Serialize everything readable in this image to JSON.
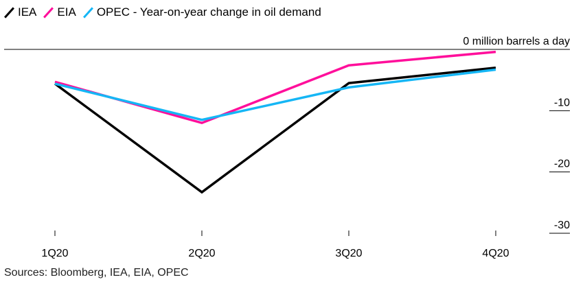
{
  "legend": {
    "items": [
      {
        "label": "IEA",
        "color": "#000000"
      },
      {
        "label": "EIA",
        "color": "#ff0f9b"
      },
      {
        "label": "OPEC",
        "color": "#15b6f5"
      }
    ],
    "title": "- Year-on-year change in oil demand"
  },
  "source": "Sources: Bloomberg, IEA, EIA, OPEC",
  "chart_data": {
    "type": "line",
    "categories": [
      "1Q20",
      "2Q20",
      "3Q20",
      "4Q20"
    ],
    "series": [
      {
        "name": "IEA",
        "values": [
          -5.6,
          -23.3,
          -5.5,
          -3.0
        ],
        "color": "#000000"
      },
      {
        "name": "EIA",
        "values": [
          -5.3,
          -12.0,
          -2.6,
          -0.4
        ],
        "color": "#ff0f9b"
      },
      {
        "name": "OPEC",
        "values": [
          -5.6,
          -11.5,
          -6.2,
          -3.3
        ],
        "color": "#15b6f5"
      }
    ],
    "ylim": [
      -30,
      0
    ],
    "y_ticks": [
      {
        "value": 0,
        "label": "0 million barrels a day"
      },
      {
        "value": -10,
        "label": "-10"
      },
      {
        "value": -20,
        "label": "-20"
      },
      {
        "value": -30,
        "label": "-30"
      }
    ],
    "xlabel": "",
    "ylabel": ""
  }
}
